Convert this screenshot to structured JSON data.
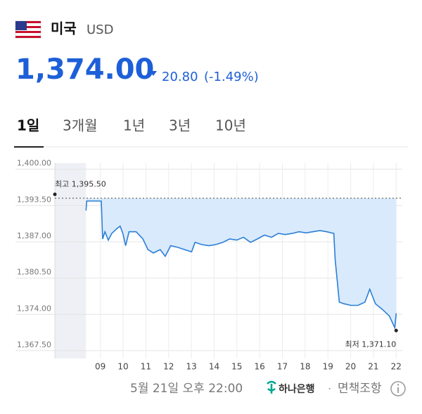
{
  "header": {
    "country": "미국",
    "currency": "USD",
    "price": "1,374.00",
    "change": "20.80",
    "change_percent": "(-1.49%)"
  },
  "tabs": {
    "items": [
      "1일",
      "3개월",
      "1년",
      "3년",
      "10년"
    ],
    "selected": 0
  },
  "chart_data": {
    "type": "line",
    "x": [
      8.37,
      8.4,
      9.04,
      9.1,
      9.2,
      9.35,
      9.5,
      9.74,
      9.87,
      9.99,
      10.11,
      10.26,
      10.57,
      10.87,
      11.09,
      11.33,
      11.63,
      11.85,
      12.09,
      12.4,
      12.7,
      13.01,
      13.16,
      13.46,
      13.77,
      14.07,
      14.38,
      14.68,
      14.99,
      15.29,
      15.6,
      15.9,
      16.21,
      16.52,
      16.82,
      17.12,
      17.43,
      17.73,
      18.04,
      18.34,
      18.65,
      18.95,
      19.26,
      19.32,
      19.41,
      19.5,
      19.71,
      20.02,
      20.32,
      20.63,
      20.84,
      21.09,
      21.39,
      21.7,
      21.94,
      22.0
    ],
    "values": [
      1392.6,
      1394.3,
      1394.3,
      1387.5,
      1388.8,
      1387.3,
      1388.5,
      1389.4,
      1389.8,
      1388.5,
      1386.3,
      1388.8,
      1388.8,
      1387.5,
      1385.6,
      1385.0,
      1385.6,
      1384.4,
      1386.3,
      1386.0,
      1385.6,
      1385.2,
      1386.9,
      1386.5,
      1386.3,
      1386.5,
      1386.9,
      1387.5,
      1387.3,
      1387.8,
      1386.9,
      1387.5,
      1388.2,
      1387.8,
      1388.5,
      1388.3,
      1388.5,
      1388.8,
      1388.6,
      1388.8,
      1389.0,
      1388.8,
      1388.5,
      1383.7,
      1380.0,
      1376.2,
      1375.9,
      1375.6,
      1375.6,
      1376.2,
      1378.5,
      1375.9,
      1374.9,
      1373.7,
      1371.6,
      1374.2
    ],
    "color": "#2b7fd6",
    "fill_color": "#d9eafc",
    "reference_line": 1394.8,
    "xlim": [
      7,
      22.27
    ],
    "xticks": [
      {
        "value": 9,
        "label": "09"
      },
      10,
      11,
      12,
      13,
      14,
      15,
      16,
      17,
      18,
      19,
      20,
      21,
      22
    ],
    "ylim": [
      1366.1,
      1401.1
    ],
    "yticks": [
      {
        "value": 1400,
        "label": "1,400.00"
      },
      {
        "value": 1393.5,
        "label": "1,393.50"
      },
      {
        "value": 1387,
        "label": "1,387.00"
      },
      {
        "value": 1380.5,
        "label": "1,380.50"
      },
      {
        "value": 1374,
        "label": "1,374.00"
      },
      {
        "value": 1367.5,
        "label": "1,367.50"
      }
    ],
    "grid": true,
    "annotations": [
      {
        "label": "최고 1,395.50",
        "value": 1395.5,
        "x": 7
      },
      {
        "label": "최저 1,371.10",
        "value": 1371.1,
        "x": 22
      }
    ]
  },
  "footer": {
    "timestamp": "5월 21일 오후 22:00",
    "bank": "하나은행",
    "separator": "·",
    "disclaimer": "면책조항"
  }
}
